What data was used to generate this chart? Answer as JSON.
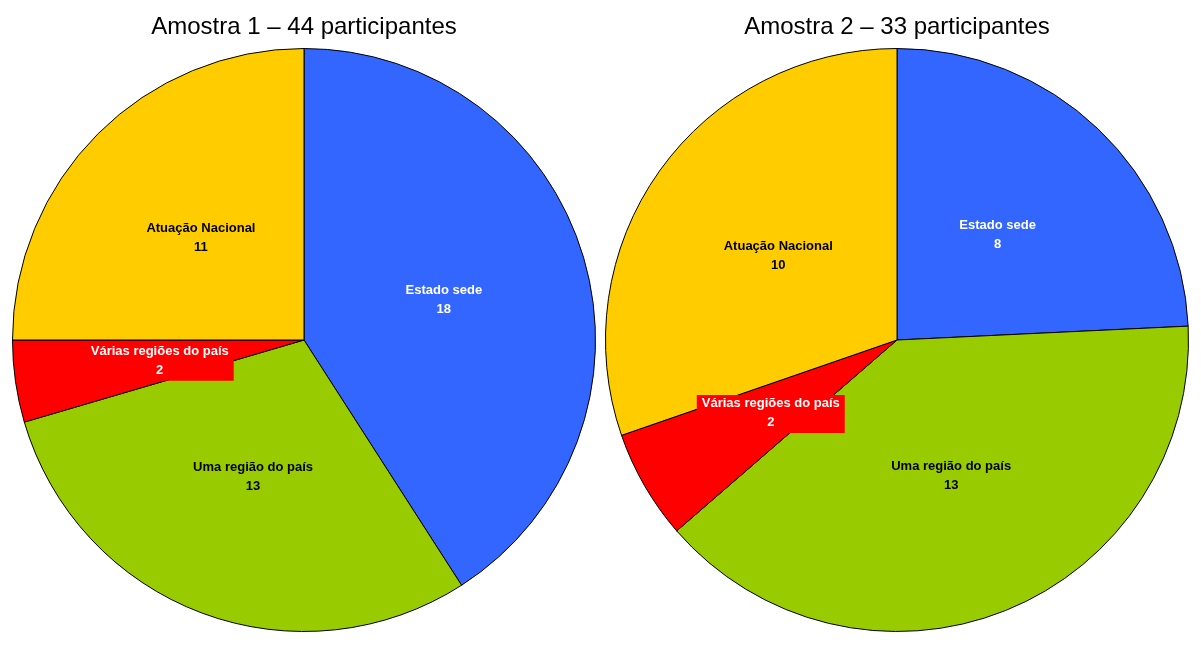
{
  "chart_data": [
    {
      "type": "pie",
      "title": "Amostra 1 – 44 participantes",
      "categories": [
        "Estado sede",
        "Uma região do país",
        "Várias regiões do país",
        "Atuação Nacional"
      ],
      "values": [
        18,
        13,
        2,
        11
      ],
      "colors": [
        "#3366ff",
        "#99cc00",
        "#ff0000",
        "#ffcc00"
      ],
      "data_labels": true
    },
    {
      "type": "pie",
      "title": "Amostra 2 – 33 participantes",
      "categories": [
        "Estado sede",
        "Uma região do país",
        "Várias regiões do país",
        "Atuação Nacional"
      ],
      "values": [
        8,
        13,
        2,
        10
      ],
      "colors": [
        "#3366ff",
        "#99cc00",
        "#ff0000",
        "#ffcc00"
      ],
      "data_labels": true
    }
  ]
}
